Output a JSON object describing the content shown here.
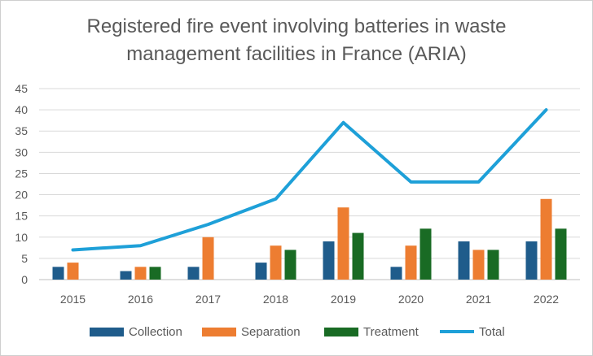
{
  "chart_data": {
    "type": "bar",
    "title_lines": [
      "Registered fire event involving batteries in waste",
      "management facilities in France (ARIA)"
    ],
    "categories": [
      "2015",
      "2016",
      "2017",
      "2018",
      "2019",
      "2020",
      "2021",
      "2022"
    ],
    "ylim": [
      0,
      45
    ],
    "yticks": [
      "0",
      "5",
      "10",
      "15",
      "20",
      "25",
      "30",
      "35",
      "40",
      "45"
    ],
    "grid": true,
    "legend_position": "bottom",
    "series": [
      {
        "name": "Collection",
        "kind": "bar",
        "color": "#1f5c8b",
        "values": [
          3,
          2,
          3,
          4,
          9,
          3,
          9,
          9
        ]
      },
      {
        "name": "Separation",
        "kind": "bar",
        "color": "#ed7d31",
        "values": [
          4,
          3,
          10,
          8,
          17,
          8,
          7,
          19
        ]
      },
      {
        "name": "Treatment",
        "kind": "bar",
        "color": "#196b24",
        "values": [
          0,
          3,
          0,
          7,
          11,
          12,
          7,
          12
        ]
      },
      {
        "name": "Total",
        "kind": "line",
        "color": "#1ea0d8",
        "values": [
          7,
          8,
          13,
          19,
          37,
          23,
          23,
          40
        ]
      }
    ]
  }
}
